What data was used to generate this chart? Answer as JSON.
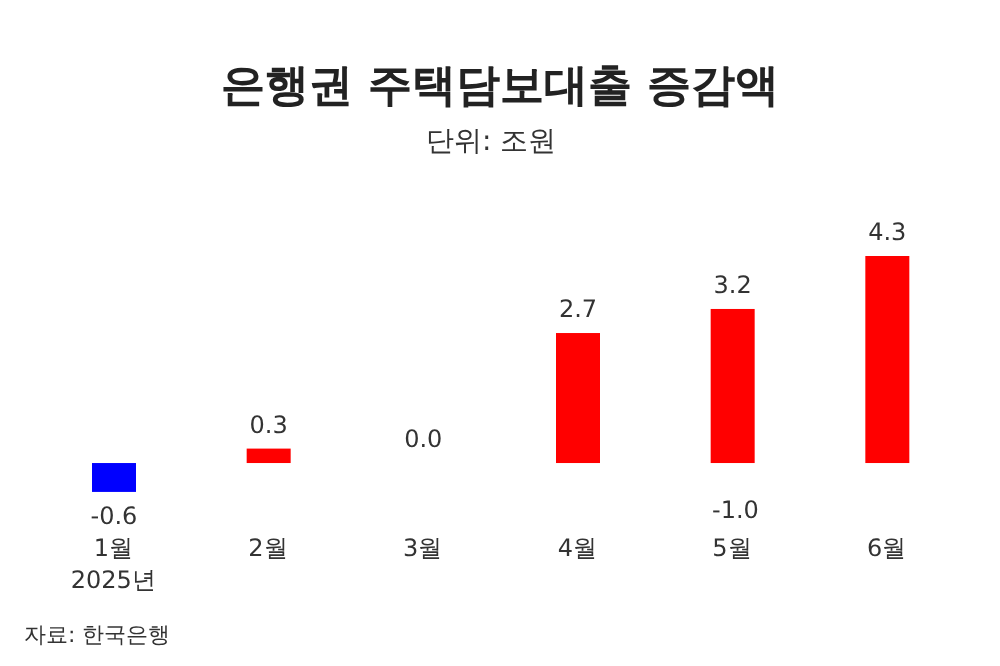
{
  "chart_data": {
    "type": "bar",
    "title": "은행권 주택담보대출 증감액",
    "subtitle": "단위: 조원",
    "categories": [
      "1월\n2025년",
      "2월",
      "3월",
      "4월",
      "5월",
      "6월"
    ],
    "values": [
      -0.6,
      0.3,
      0.0,
      2.7,
      3.2,
      4.3
    ],
    "colors": [
      "#0000ff",
      "#ff0000",
      "#ff0000",
      "#ff0000",
      "#ff0000",
      "#ff0000"
    ],
    "value_labels": [
      "-0.6",
      "0.3",
      "0.0",
      "2.7",
      "3.2",
      "4.3"
    ],
    "annotations": [
      "-1.0",
      "자료: 한국은행"
    ]
  }
}
